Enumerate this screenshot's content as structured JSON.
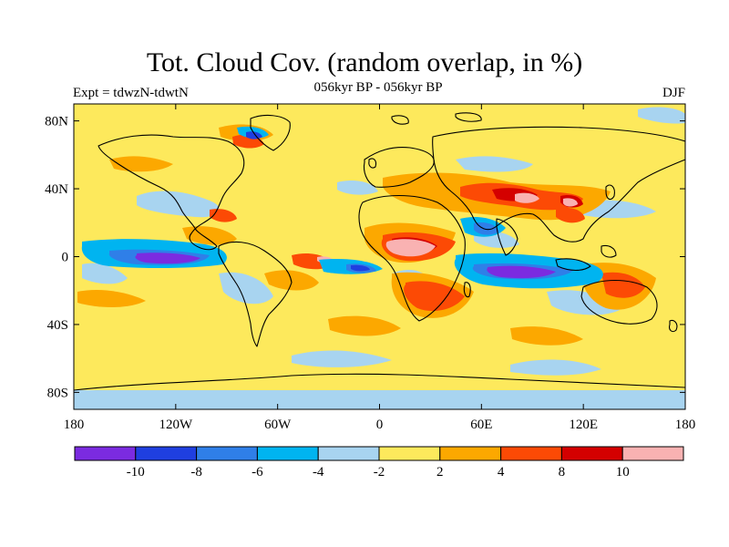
{
  "header": {
    "title": "Tot. Cloud Cov. (random overlap, in %)",
    "subtitle": "056kyr BP - 056kyr BP",
    "experiment": "Expt = tdwzN-tdwtN",
    "season": "DJF"
  },
  "map": {
    "x_ticks": [
      "180",
      "120W",
      "60W",
      "0",
      "60E",
      "120E",
      "180"
    ],
    "y_ticks": [
      "80N",
      "40N",
      "0",
      "40S",
      "80S"
    ]
  },
  "colorbar": {
    "labels": [
      "-10",
      "-8",
      "-6",
      "-4",
      "-2",
      "2",
      "4",
      "8",
      "10"
    ],
    "colors": [
      "#7b2be0",
      "#1f3fe0",
      "#2f7fe8",
      "#00b4f0",
      "#a8d4f0",
      "#fde95c",
      "#fca800",
      "#fc4a05",
      "#d40000",
      "#f9b2b2"
    ]
  }
}
